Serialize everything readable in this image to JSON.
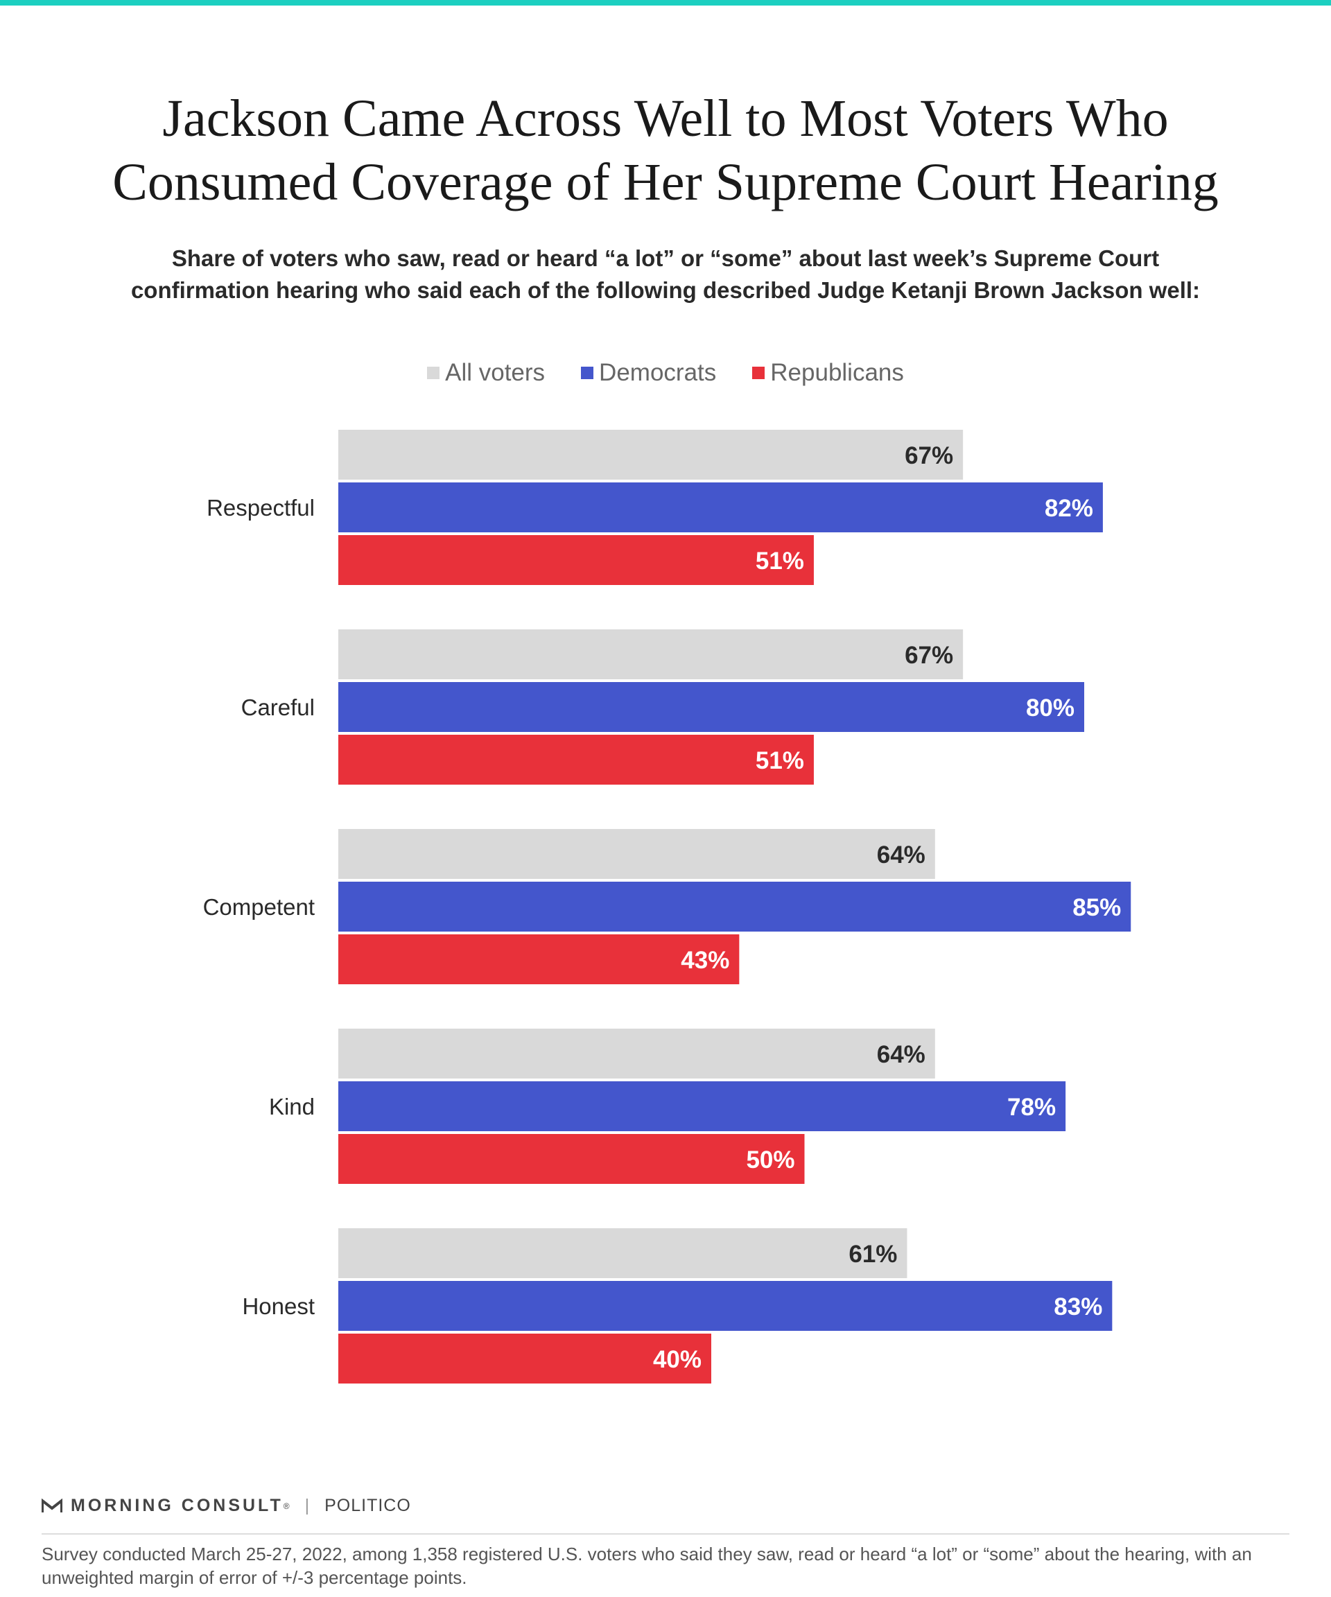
{
  "header": {
    "accent_color": "#1ccfc0",
    "title_line1": "Jackson Came Across Well to Most Voters Who",
    "title_line2": "Consumed Coverage of Her Supreme Court Hearing",
    "subtitle_line1": "Share of voters who saw, read or heard “a lot” or “some” about last week’s Supreme Court",
    "subtitle_line2": "confirmation hearing who said each of the following described Judge Ketanji Brown Jackson well:"
  },
  "chart_data": {
    "type": "bar",
    "orientation": "horizontal",
    "categories": [
      "Respectful",
      "Careful",
      "Competent",
      "Kind",
      "Honest"
    ],
    "series": [
      {
        "name": "All voters",
        "color": "#d9d9d9",
        "label_color": "#2a2a2a",
        "values": [
          67,
          67,
          64,
          64,
          61
        ],
        "labels": [
          "67%",
          "67%",
          "64%",
          "64%",
          "61%"
        ]
      },
      {
        "name": "Democrats",
        "color": "#4456cc",
        "label_color": "#ffffff",
        "values": [
          82,
          80,
          85,
          78,
          83
        ],
        "labels": [
          "82%",
          "80%",
          "85%",
          "78%",
          "83%"
        ]
      },
      {
        "name": "Republicans",
        "color": "#e8313a",
        "label_color": "#ffffff",
        "values": [
          51,
          51,
          43,
          50,
          40
        ],
        "labels": [
          "51%",
          "51%",
          "43%",
          "50%",
          "40%"
        ]
      }
    ],
    "xlim": [
      0,
      100
    ],
    "legend": "top-center",
    "grid": false
  },
  "footer": {
    "brand1": "MORNING CONSULT",
    "brand_mark": "®",
    "brand_separator": "|",
    "brand2": "POLITICO",
    "note": "Survey conducted March 25-27, 2022, among 1,358 registered U.S. voters who said they saw, read or heard “a lot” or “some” about the hearing, with an unweighted margin of error of +/-3 percentage points."
  }
}
